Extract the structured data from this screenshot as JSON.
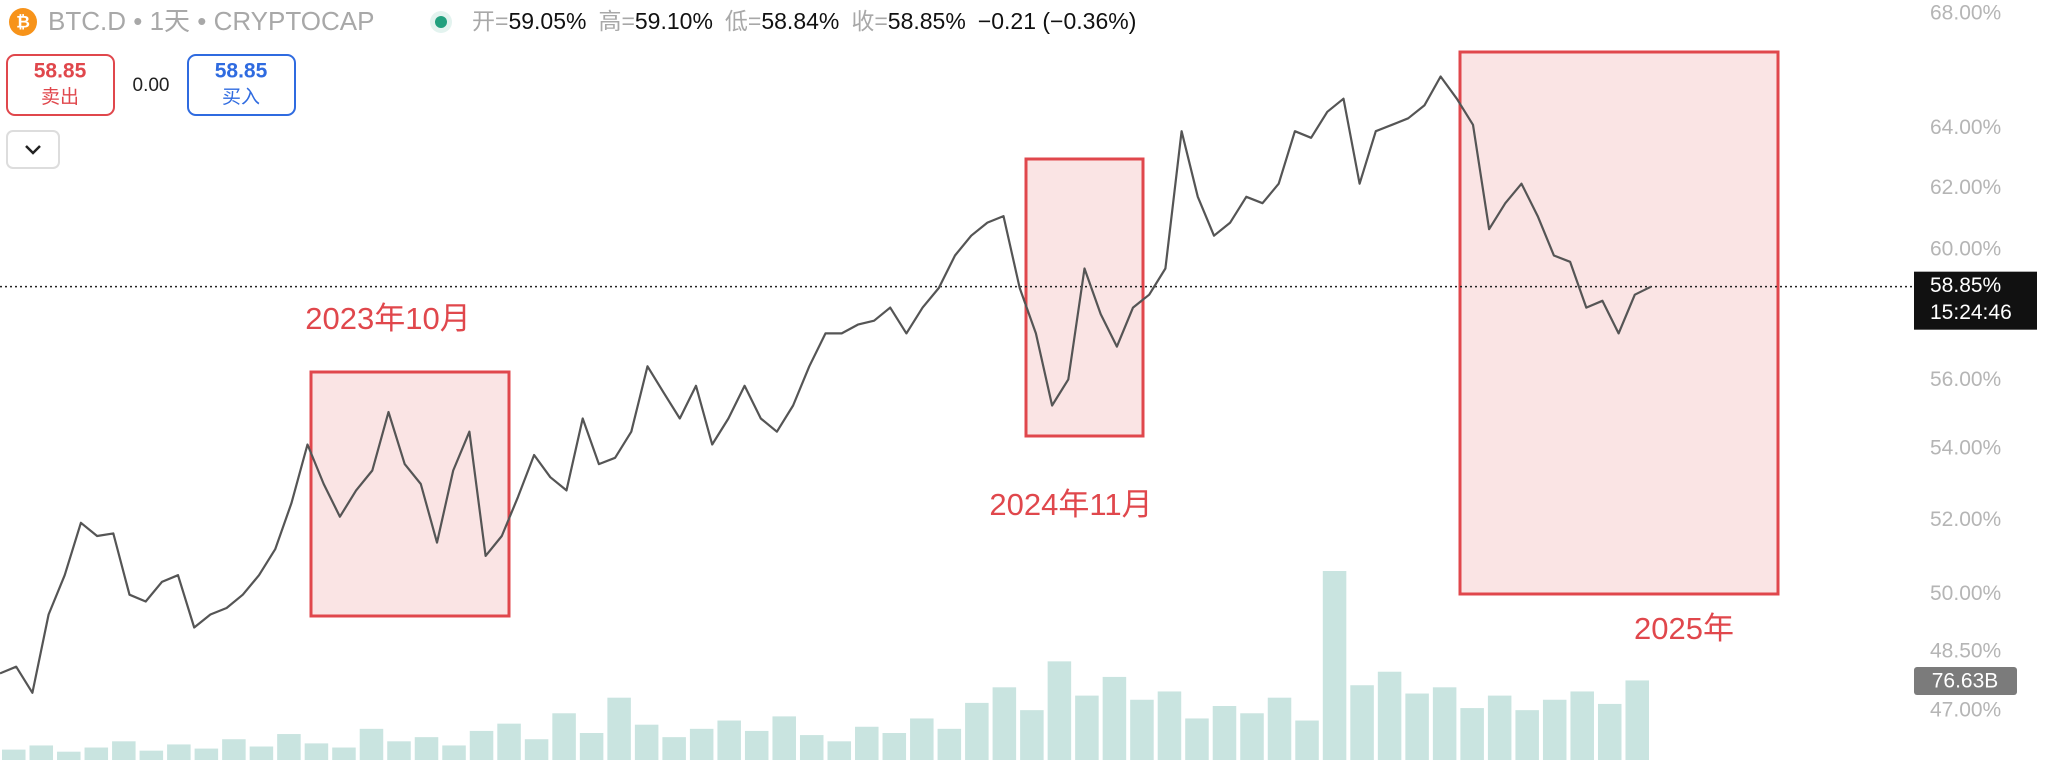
{
  "header": {
    "symbol": "BTC.D",
    "interval": "1天",
    "exchange": "CRYPTOCAP",
    "ohlc": [
      {
        "label": "开=",
        "value": "59.05%"
      },
      {
        "label": "高=",
        "value": "59.10%"
      },
      {
        "label": "低=",
        "value": "58.84%"
      },
      {
        "label": "收=",
        "value": "58.85%"
      }
    ],
    "change": "−0.21 (−0.36%)"
  },
  "trade": {
    "sell_price": "58.85",
    "sell_label": "卖出",
    "spread": "0.00",
    "buy_price": "58.85",
    "buy_label": "买入"
  },
  "chart_data": {
    "type": "line",
    "log_scale": true,
    "color": "#555555",
    "values": [
      47.95,
      48.12,
      47.46,
      49.47,
      50.51,
      51.93,
      51.57,
      51.64,
      49.99,
      49.81,
      50.33,
      50.51,
      49.13,
      49.47,
      49.64,
      49.99,
      50.51,
      51.21,
      52.47,
      54.13,
      53.01,
      52.1,
      52.83,
      53.39,
      55.07,
      53.57,
      53.01,
      51.39,
      53.39,
      54.5,
      51.03,
      51.57,
      52.65,
      53.83,
      53.2,
      52.83,
      54.88,
      53.57,
      53.75,
      54.5,
      56.42,
      55.64,
      54.88,
      55.84,
      54.13,
      54.88,
      55.84,
      54.88,
      54.5,
      55.26,
      56.42,
      57.41,
      57.41,
      57.68,
      57.8,
      58.2,
      57.41,
      58.2,
      58.81,
      59.83,
      60.46,
      60.88,
      61.09,
      58.81,
      57.41,
      55.26,
      56.03,
      59.42,
      58.0,
      57.01,
      58.2,
      58.6,
      59.42,
      63.9,
      61.72,
      60.46,
      60.88,
      61.72,
      61.51,
      62.15,
      63.9,
      63.68,
      64.56,
      65.01,
      62.15,
      63.9,
      64.12,
      64.34,
      64.78,
      65.78,
      65.01,
      64.12,
      60.67,
      61.51,
      62.15,
      61.09,
      59.83,
      59.63,
      58.2,
      58.41,
      57.41,
      58.6,
      58.85
    ],
    "volume": {
      "color": "#c9e4e0",
      "values": [
        10,
        14,
        8,
        12,
        18,
        9,
        15,
        11,
        20,
        13,
        25,
        16,
        12,
        30,
        18,
        22,
        14,
        28,
        35,
        20,
        45,
        26,
        60,
        34,
        22,
        30,
        38,
        28,
        42,
        24,
        18,
        32,
        26,
        40,
        30,
        55,
        70,
        48,
        95,
        62,
        80,
        58,
        66,
        40,
        52,
        45,
        60,
        38,
        182,
        72,
        85,
        64,
        70,
        50,
        62,
        48,
        58,
        66,
        54,
        76.63
      ],
      "value_label": "76.63B"
    },
    "last_price": {
      "value": 58.85,
      "label": "58.85%"
    },
    "countdown": "15:24:46",
    "ylim": [
      45.8,
      68.5
    ],
    "yticks": [
      {
        "value": 47,
        "label": "47.00%"
      },
      {
        "value": 48.5,
        "label": "48.50%"
      },
      {
        "value": 50,
        "label": "50.00%"
      },
      {
        "value": 52,
        "label": "52.00%"
      },
      {
        "value": 54,
        "label": "54.00%"
      },
      {
        "value": 56,
        "label": "56.00%"
      },
      {
        "value": 60,
        "label": "60.00%"
      },
      {
        "value": 62,
        "label": "62.00%"
      },
      {
        "value": 64,
        "label": "64.00%"
      },
      {
        "value": 68,
        "label": "68.00%"
      }
    ],
    "annotations": [
      "2023年10月",
      "2024年11月",
      "2025年"
    ]
  }
}
